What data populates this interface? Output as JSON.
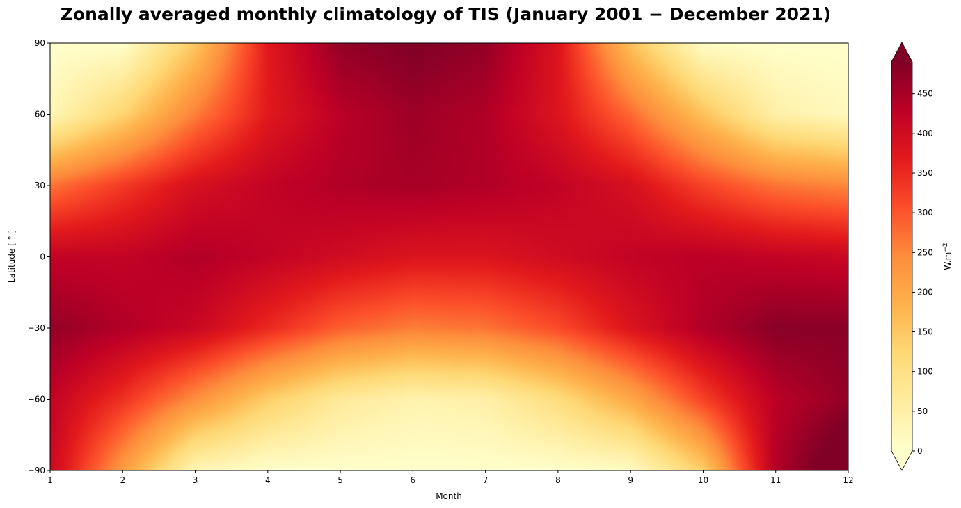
{
  "chart_data": {
    "type": "heatmap",
    "title": "Zonally averaged monthly climatology of TIS (January 2001  −  December 2021)",
    "xlabel": "Month",
    "ylabel": "Latitude [ ° ]",
    "x_ticks": [
      "1",
      "2",
      "3",
      "4",
      "5",
      "6",
      "7",
      "8",
      "9",
      "10",
      "11",
      "12"
    ],
    "y_ticks": [
      "90",
      "60",
      "30",
      "0",
      "−30",
      "−60",
      "−90"
    ],
    "xlim": [
      1,
      12
    ],
    "ylim": [
      -90,
      90
    ],
    "colorbar": {
      "label": "W.m",
      "label_sup": "−2",
      "ticks": [
        "0",
        "50",
        "100",
        "150",
        "200",
        "250",
        "300",
        "350",
        "400",
        "450"
      ],
      "range": [
        0,
        490
      ],
      "extend": "both",
      "colormap": "YlOrRd",
      "colors": [
        "#ffffcc",
        "#ffeda0",
        "#fed976",
        "#feb24c",
        "#fd8d3c",
        "#fc4e2a",
        "#e31a1c",
        "#bd0026",
        "#800026"
      ]
    },
    "months": [
      1,
      2,
      3,
      4,
      5,
      6,
      7,
      8,
      9,
      10,
      11,
      12
    ],
    "latitudes": [
      90,
      60,
      30,
      0,
      -30,
      -60,
      -90
    ],
    "values": [
      [
        0,
        0,
        150,
        370,
        470,
        490,
        470,
        380,
        160,
        10,
        0,
        0
      ],
      [
        30,
        130,
        260,
        370,
        430,
        460,
        440,
        380,
        280,
        160,
        50,
        20
      ],
      [
        270,
        330,
        390,
        420,
        440,
        450,
        440,
        420,
        390,
        320,
        270,
        250
      ],
      [
        420,
        420,
        440,
        420,
        400,
        380,
        380,
        400,
        420,
        430,
        420,
        410
      ],
      [
        470,
        440,
        410,
        350,
        290,
        260,
        270,
        310,
        380,
        440,
        480,
        480
      ],
      [
        420,
        340,
        240,
        140,
        70,
        40,
        50,
        110,
        200,
        320,
        430,
        470
      ],
      [
        410,
        220,
        30,
        0,
        0,
        0,
        0,
        0,
        10,
        140,
        440,
        540
      ]
    ]
  }
}
